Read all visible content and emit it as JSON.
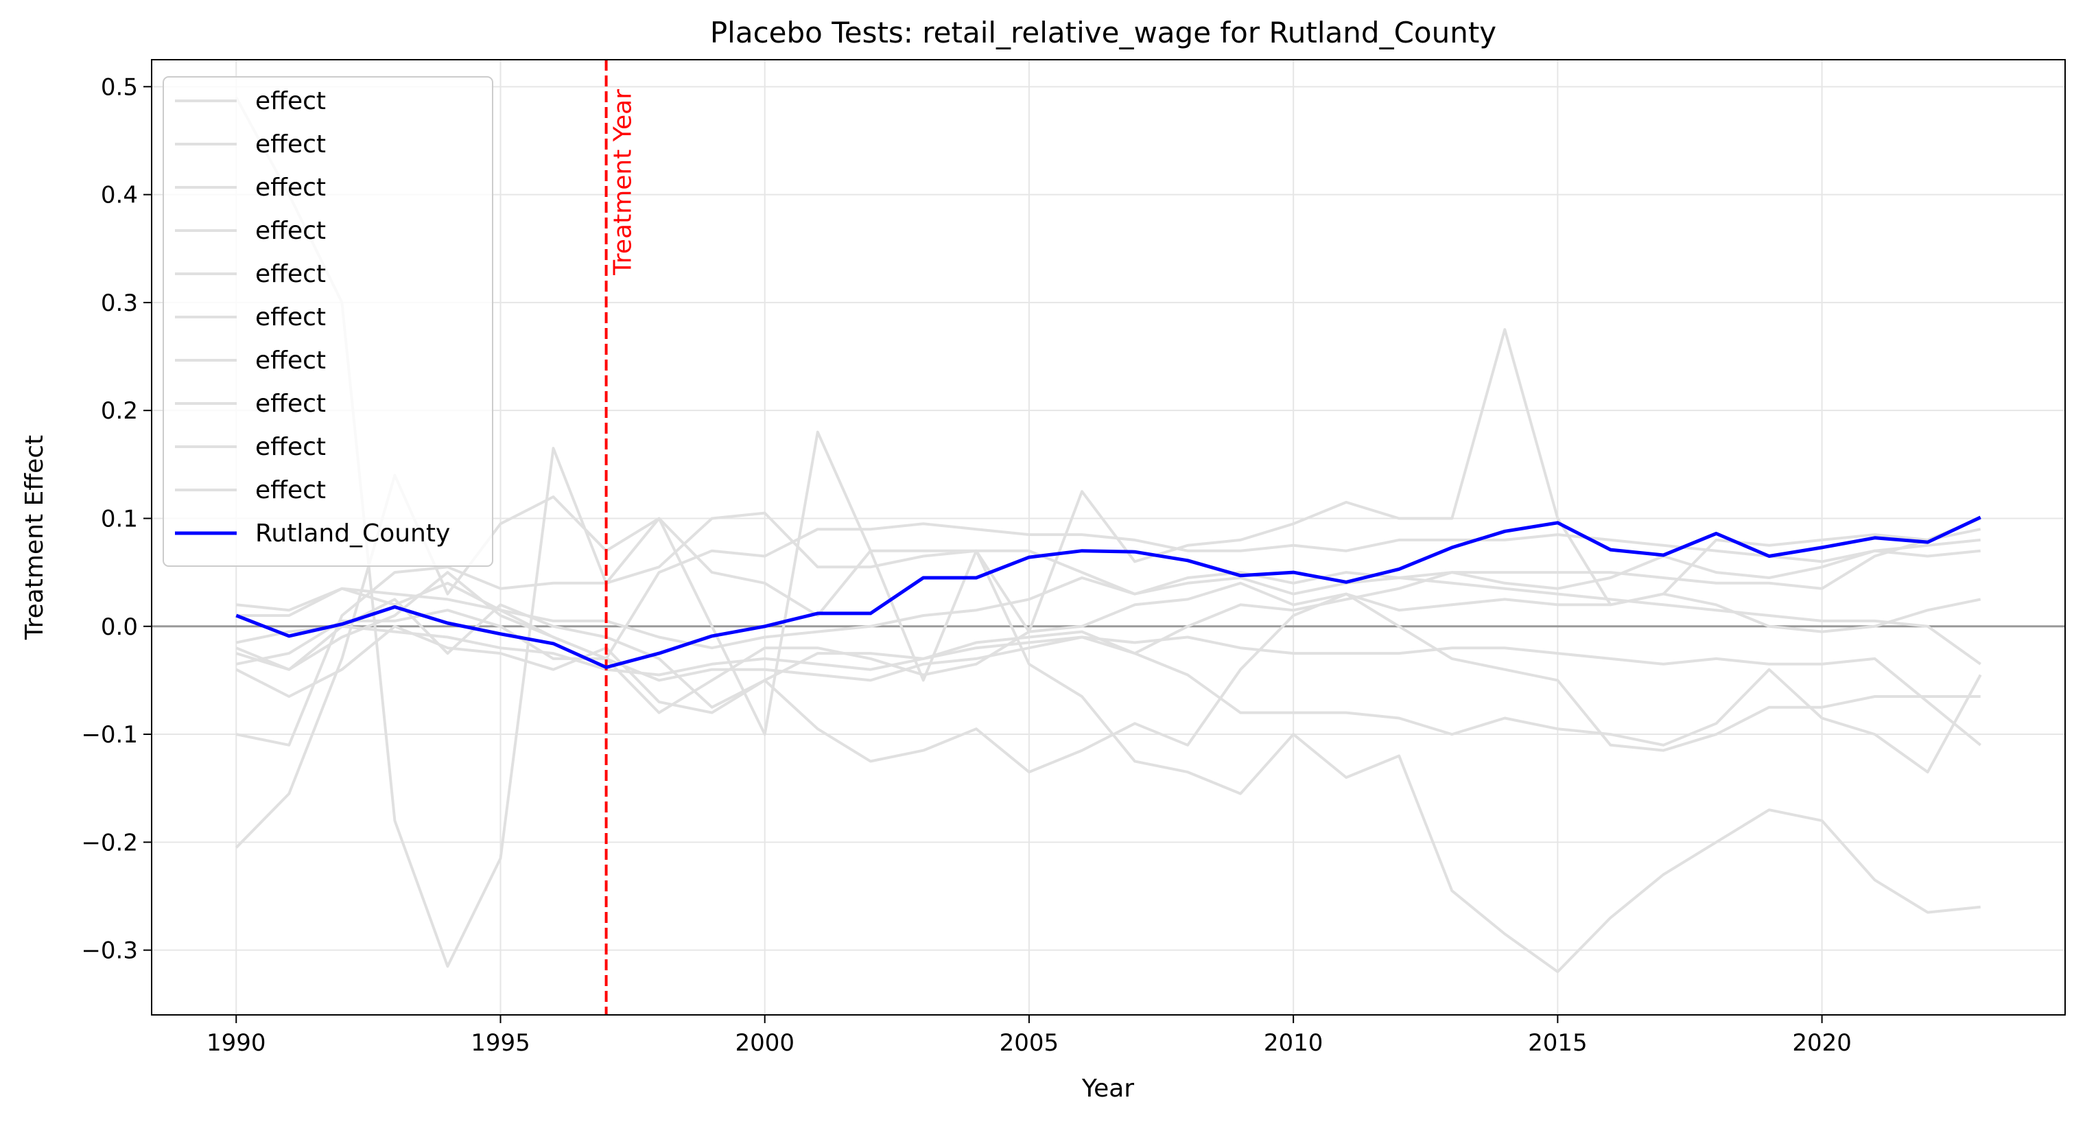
{
  "chart_data": {
    "type": "line",
    "title": "Placebo Tests: retail_relative_wage for Rutland_County",
    "xlabel": "Year",
    "ylabel": "Treatment Effect",
    "xlim": [
      1988.4,
      2024.6
    ],
    "ylim": [
      -0.36,
      0.525
    ],
    "xticks": [
      1990,
      1995,
      2000,
      2005,
      2010,
      2015,
      2020
    ],
    "yticks": [
      -0.3,
      -0.2,
      -0.1,
      0.0,
      0.1,
      0.2,
      0.3,
      0.4,
      0.5
    ],
    "ytick_labels": [
      "−0.3",
      "−0.2",
      "−0.1",
      "0.0",
      "0.1",
      "0.2",
      "0.3",
      "0.4",
      "0.5"
    ],
    "grid": true,
    "legend_position": "upper-left",
    "zero_line": 0,
    "treatment": {
      "year": 1997,
      "label": "Treatment Year",
      "color": "#ff0000"
    },
    "placebo_color": "#e0e0e0",
    "main_color": "#0000ff",
    "x": [
      1990,
      1991,
      1992,
      1993,
      1994,
      1995,
      1996,
      1997,
      1998,
      1999,
      2000,
      2001,
      2002,
      2003,
      2004,
      2005,
      2006,
      2007,
      2008,
      2009,
      2010,
      2011,
      2012,
      2013,
      2014,
      2015,
      2016,
      2017,
      2018,
      2019,
      2020,
      2021,
      2022,
      2023
    ],
    "series": [
      {
        "name": "effect",
        "role": "placebo",
        "values": [
          0.49,
          0.4,
          0.3,
          -0.18,
          -0.315,
          -0.215,
          0.165,
          0.04,
          0.1,
          0.0,
          -0.1,
          0.18,
          0.07,
          -0.05,
          0.07,
          -0.035,
          -0.065,
          -0.125,
          -0.135,
          -0.155,
          -0.1,
          -0.14,
          -0.12,
          -0.245,
          -0.285,
          -0.32,
          -0.27,
          -0.23,
          -0.2,
          -0.17,
          -0.18,
          -0.235,
          -0.265,
          -0.26
        ]
      },
      {
        "name": "effect",
        "role": "placebo",
        "values": [
          -0.205,
          -0.155,
          -0.03,
          0.14,
          0.03,
          0.095,
          0.12,
          0.07,
          0.1,
          0.05,
          0.04,
          0.01,
          0.07,
          0.07,
          0.07,
          -0.005,
          0.125,
          0.06,
          0.075,
          0.08,
          0.095,
          0.115,
          0.1,
          0.1,
          0.275,
          0.1,
          0.02,
          0.03,
          0.08,
          0.075,
          0.08,
          0.085,
          0.08,
          0.09
        ]
      },
      {
        "name": "effect",
        "role": "placebo",
        "values": [
          -0.1,
          -0.11,
          0.01,
          0.05,
          0.055,
          0.035,
          0.04,
          0.04,
          0.055,
          0.1,
          0.105,
          0.055,
          0.055,
          0.065,
          0.07,
          0.07,
          0.05,
          0.03,
          0.045,
          0.05,
          0.04,
          0.05,
          0.045,
          0.05,
          0.05,
          0.05,
          0.05,
          0.045,
          0.04,
          0.04,
          0.035,
          0.065,
          0.08,
          0.1
        ]
      },
      {
        "name": "effect",
        "role": "placebo",
        "values": [
          0.02,
          0.015,
          0.035,
          0.02,
          0.04,
          0.015,
          -0.01,
          -0.03,
          0.05,
          0.07,
          0.065,
          0.09,
          0.09,
          0.095,
          0.09,
          0.085,
          0.085,
          0.08,
          0.07,
          0.07,
          0.075,
          0.07,
          0.08,
          0.08,
          0.08,
          0.085,
          0.08,
          0.075,
          0.07,
          0.065,
          0.06,
          0.07,
          0.065,
          0.07
        ]
      },
      {
        "name": "effect",
        "role": "placebo",
        "values": [
          -0.035,
          -0.025,
          0.005,
          0.005,
          0.015,
          0.0,
          -0.03,
          -0.03,
          -0.08,
          -0.05,
          -0.02,
          -0.02,
          -0.03,
          -0.045,
          -0.035,
          -0.005,
          0.0,
          0.02,
          0.025,
          0.04,
          0.02,
          0.03,
          0.015,
          0.02,
          0.025,
          0.02,
          0.02,
          0.03,
          0.02,
          0.0,
          -0.005,
          0.0,
          0.015,
          0.025
        ]
      },
      {
        "name": "effect",
        "role": "placebo",
        "values": [
          -0.04,
          -0.065,
          -0.04,
          0.0,
          -0.02,
          -0.025,
          -0.04,
          -0.02,
          -0.07,
          -0.08,
          -0.05,
          -0.095,
          -0.125,
          -0.115,
          -0.095,
          -0.135,
          -0.115,
          -0.09,
          -0.11,
          -0.04,
          0.01,
          0.03,
          0.0,
          -0.03,
          -0.04,
          -0.05,
          -0.11,
          -0.115,
          -0.1,
          -0.075,
          -0.075,
          -0.065,
          -0.065,
          -0.065
        ]
      },
      {
        "name": "effect",
        "role": "placebo",
        "values": [
          -0.02,
          -0.04,
          -0.01,
          0.01,
          0.05,
          0.01,
          -0.01,
          -0.03,
          -0.05,
          -0.04,
          -0.04,
          -0.045,
          -0.05,
          -0.035,
          -0.03,
          -0.02,
          -0.01,
          -0.025,
          -0.045,
          -0.08,
          -0.08,
          -0.08,
          -0.085,
          -0.1,
          -0.085,
          -0.095,
          -0.1,
          -0.11,
          -0.09,
          -0.04,
          -0.085,
          -0.1,
          -0.135,
          -0.045
        ]
      },
      {
        "name": "effect",
        "role": "placebo",
        "values": [
          -0.025,
          -0.04,
          0.0,
          0.025,
          -0.025,
          0.02,
          0.0,
          -0.01,
          -0.03,
          -0.075,
          -0.05,
          -0.025,
          -0.025,
          -0.03,
          -0.015,
          -0.01,
          -0.005,
          -0.025,
          0.0,
          0.02,
          0.015,
          0.025,
          0.035,
          0.05,
          0.04,
          0.035,
          0.045,
          0.065,
          0.05,
          0.045,
          0.055,
          0.07,
          0.075,
          0.08
        ]
      },
      {
        "name": "effect",
        "role": "placebo",
        "values": [
          0.01,
          0.01,
          0.035,
          0.03,
          0.025,
          0.015,
          0.005,
          0.005,
          -0.01,
          -0.02,
          -0.01,
          -0.005,
          0.0,
          0.01,
          0.015,
          0.025,
          0.045,
          0.03,
          0.04,
          0.045,
          0.03,
          0.04,
          0.045,
          0.04,
          0.035,
          0.03,
          0.025,
          0.02,
          0.015,
          0.01,
          0.005,
          0.005,
          0.0,
          -0.035
        ]
      },
      {
        "name": "effect",
        "role": "placebo",
        "values": [
          -0.015,
          -0.005,
          0.0,
          -0.005,
          -0.01,
          -0.02,
          -0.025,
          -0.04,
          -0.045,
          -0.035,
          -0.03,
          -0.035,
          -0.04,
          -0.03,
          -0.02,
          -0.015,
          -0.01,
          -0.015,
          -0.01,
          -0.02,
          -0.025,
          -0.025,
          -0.025,
          -0.02,
          -0.02,
          -0.025,
          -0.03,
          -0.035,
          -0.03,
          -0.035,
          -0.035,
          -0.03,
          -0.07,
          -0.11
        ]
      },
      {
        "name": "Rutland_County",
        "role": "main",
        "values": [
          0.01,
          -0.009,
          0.002,
          0.018,
          0.003,
          -0.007,
          -0.016,
          -0.038,
          -0.025,
          -0.009,
          0.0,
          0.012,
          0.012,
          0.045,
          0.045,
          0.064,
          0.07,
          0.069,
          0.061,
          0.047,
          0.05,
          0.041,
          0.053,
          0.073,
          0.088,
          0.096,
          0.071,
          0.066,
          0.086,
          0.065,
          0.073,
          0.082,
          0.078,
          0.101
        ]
      }
    ]
  }
}
